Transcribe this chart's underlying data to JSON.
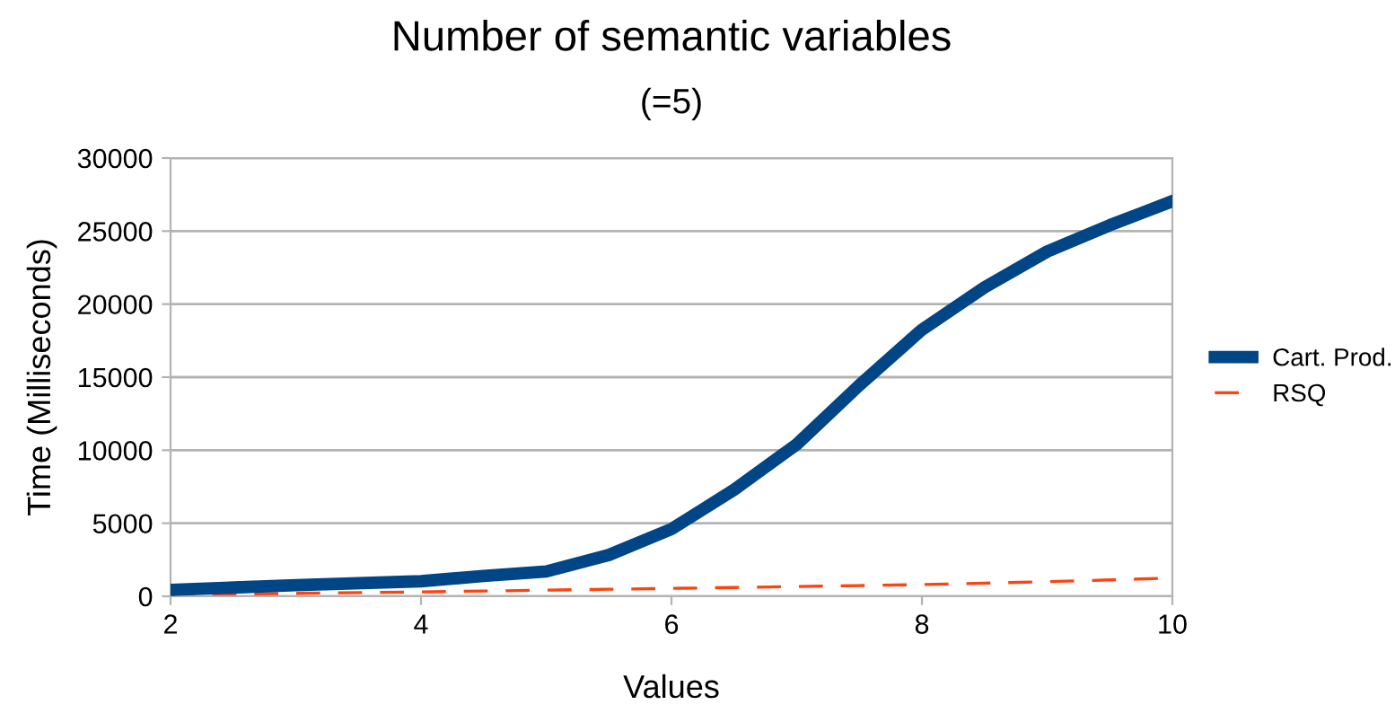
{
  "chart_data": {
    "type": "line",
    "title": "Number of semantic variables",
    "subtitle": "(=5)",
    "xlabel": "Values",
    "ylabel": "Time (Milliseconds)",
    "x": [
      2,
      3,
      4,
      4.5,
      5,
      5.5,
      6,
      6.5,
      7,
      7.5,
      8,
      8.5,
      9,
      9.5,
      10
    ],
    "series": [
      {
        "name": "Cart. Prod.",
        "color": "#004586",
        "line_style": "solid",
        "values": [
          440,
          760,
          1030,
          1390,
          1700,
          2830,
          4600,
          7300,
          10400,
          14450,
          18250,
          21150,
          23600,
          25400,
          27050
        ]
      },
      {
        "name": "RSQ",
        "color": "#ff420e",
        "line_style": "dashed",
        "values": [
          100,
          200,
          300,
          360,
          420,
          480,
          540,
          600,
          670,
          730,
          800,
          900,
          1000,
          1120,
          1250
        ]
      }
    ],
    "xlim": [
      2,
      10
    ],
    "xticks": [
      2,
      4,
      6,
      8,
      10
    ],
    "ylim": [
      0,
      30000
    ],
    "yticks": [
      0,
      5000,
      10000,
      15000,
      20000,
      25000,
      30000
    ],
    "grid": "y",
    "legend": "right",
    "marker": "none"
  }
}
